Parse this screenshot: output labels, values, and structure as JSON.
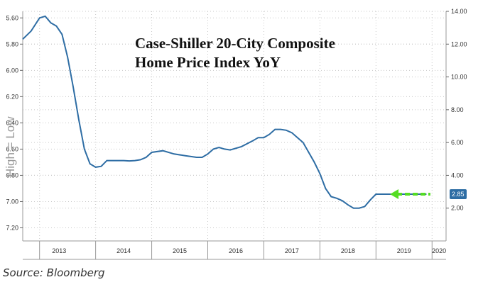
{
  "chart_data": {
    "type": "line",
    "title_lines": [
      "Case-Shiller 20-City Composite",
      "Home Price Index YoY"
    ],
    "left_axis_label": "High = Low",
    "left_axis": {
      "ticks": [
        "5.60",
        "5.80",
        "6.00",
        "6.20",
        "6.40",
        "6.60",
        "6.80",
        "7.00",
        "7.20"
      ],
      "ylim": [
        5.55,
        7.3
      ]
    },
    "right_axis": {
      "ticks": [
        "14.00",
        "12.00",
        "10.00",
        "8.00",
        "6.00",
        "4.00",
        "2.00"
      ],
      "ylim": [
        0.0,
        14.0
      ]
    },
    "x_labels": [
      "2013",
      "2014",
      "2015",
      "2016",
      "2017",
      "2018",
      "2019",
      "2020"
    ],
    "xlim": [
      2012.7,
      2020.25
    ],
    "grid": true,
    "series": [
      {
        "color": "#2e6da4",
        "x": [
          2012.7,
          2012.85,
          2013.0,
          2013.1,
          2013.2,
          2013.3,
          2013.4,
          2013.5,
          2013.6,
          2013.7,
          2013.8,
          2013.9,
          2014.0,
          2014.1,
          2014.2,
          2014.3,
          2014.4,
          2014.5,
          2014.6,
          2014.7,
          2014.8,
          2014.9,
          2015.0,
          2015.2,
          2015.4,
          2015.6,
          2015.8,
          2015.9,
          2016.0,
          2016.1,
          2016.2,
          2016.3,
          2016.4,
          2016.6,
          2016.8,
          2016.9,
          2017.0,
          2017.1,
          2017.2,
          2017.3,
          2017.4,
          2017.5,
          2017.6,
          2017.7,
          2017.8,
          2017.9,
          2018.0,
          2018.1,
          2018.2,
          2018.3,
          2018.4,
          2018.5,
          2018.6,
          2018.7,
          2018.8,
          2018.9,
          2019.0,
          2019.1,
          2019.2,
          2019.3,
          2019.4,
          2019.5,
          2019.6,
          2019.7,
          2019.8,
          2019.9
        ],
        "values": [
          12.3,
          12.8,
          13.6,
          13.7,
          13.3,
          13.1,
          12.6,
          11.2,
          9.4,
          7.4,
          5.6,
          4.7,
          4.5,
          4.55,
          4.9,
          4.9,
          4.9,
          4.9,
          4.88,
          4.9,
          4.95,
          5.1,
          5.4,
          5.5,
          5.3,
          5.2,
          5.1,
          5.1,
          5.3,
          5.6,
          5.7,
          5.6,
          5.55,
          5.75,
          6.1,
          6.3,
          6.3,
          6.5,
          6.8,
          6.8,
          6.75,
          6.6,
          6.3,
          6.0,
          5.4,
          4.8,
          4.1,
          3.2,
          2.7,
          2.6,
          2.45,
          2.2,
          2.0,
          2.0,
          2.1,
          2.5,
          2.85,
          2.85,
          2.85,
          2.85,
          2.85,
          2.85,
          2.85,
          2.85,
          2.85,
          2.85
        ]
      }
    ],
    "last_value_label": "2.85",
    "last_value_badge_color": "#2e6da4",
    "arrow_color": "#55dd22",
    "line_color": "#2e6da4"
  },
  "source": "Source: Bloomberg"
}
